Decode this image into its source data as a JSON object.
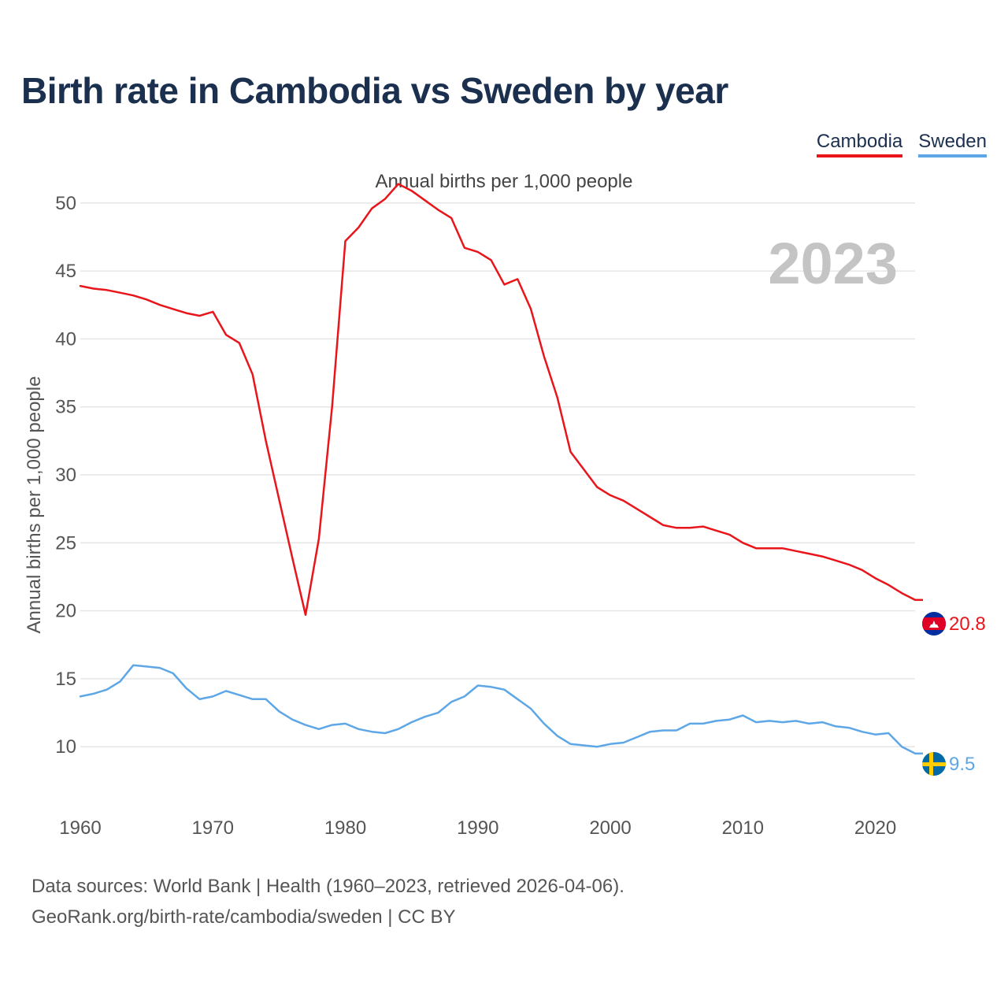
{
  "title": "Birth rate in Cambodia vs Sweden by year",
  "legend": {
    "items": [
      "Cambodia",
      "Sweden"
    ]
  },
  "subtitle": "Annual births per 1,000 people",
  "year_label": "2023",
  "footer": {
    "line1": "Data sources: World Bank | Health (1960–2023, retrieved 2026-04-06).",
    "line2": "GeoRank.org/birth-rate/cambodia/sweden | CC BY"
  },
  "colors": {
    "cambodia": "#e8151b",
    "sweden": "#5ea7e6",
    "title": "#1b2f4e",
    "grid": "#e6e6e6"
  },
  "chart_data": {
    "type": "line",
    "title": "Birth rate in Cambodia vs Sweden by year",
    "ylabel": "Annual births per 1,000 people",
    "xlabel": "",
    "xlim": [
      1960,
      2023
    ],
    "ylim": [
      7,
      53
    ],
    "xticks": [
      1960,
      1970,
      1980,
      1990,
      2000,
      2010,
      2020
    ],
    "yticks": [
      10,
      15,
      20,
      25,
      30,
      35,
      40,
      45,
      50
    ],
    "x": [
      1960,
      1961,
      1962,
      1963,
      1964,
      1965,
      1966,
      1967,
      1968,
      1969,
      1970,
      1971,
      1972,
      1973,
      1974,
      1975,
      1976,
      1977,
      1978,
      1979,
      1980,
      1981,
      1982,
      1983,
      1984,
      1985,
      1986,
      1987,
      1988,
      1989,
      1990,
      1991,
      1992,
      1993,
      1994,
      1995,
      1996,
      1997,
      1998,
      1999,
      2000,
      2001,
      2002,
      2003,
      2004,
      2005,
      2006,
      2007,
      2008,
      2009,
      2010,
      2011,
      2012,
      2013,
      2014,
      2015,
      2016,
      2017,
      2018,
      2019,
      2020,
      2021,
      2022,
      2023
    ],
    "series": [
      {
        "name": "Cambodia",
        "end_label": "20.8",
        "values": [
          43.9,
          43.7,
          43.6,
          43.4,
          43.2,
          42.9,
          42.5,
          42.2,
          41.9,
          41.7,
          42.0,
          40.3,
          39.7,
          37.4,
          32.5,
          28.2,
          23.9,
          19.7,
          25.3,
          35.0,
          47.2,
          48.2,
          49.6,
          50.3,
          51.4,
          50.9,
          50.2,
          49.5,
          48.9,
          46.7,
          46.4,
          45.8,
          44.0,
          44.4,
          42.2,
          38.7,
          35.7,
          31.7,
          30.4,
          29.1,
          28.5,
          28.1,
          27.5,
          26.9,
          26.3,
          26.1,
          26.1,
          26.2,
          25.9,
          25.6,
          25.0,
          24.6,
          24.6,
          24.6,
          24.4,
          24.2,
          24.0,
          23.7,
          23.4,
          23.0,
          22.4,
          21.9,
          21.3,
          20.8
        ]
      },
      {
        "name": "Sweden",
        "end_label": "9.5",
        "values": [
          13.7,
          13.9,
          14.2,
          14.8,
          16.0,
          15.9,
          15.8,
          15.4,
          14.3,
          13.5,
          13.7,
          14.1,
          13.8,
          13.5,
          13.5,
          12.6,
          12.0,
          11.6,
          11.3,
          11.6,
          11.7,
          11.3,
          11.1,
          11.0,
          11.3,
          11.8,
          12.2,
          12.5,
          13.3,
          13.7,
          14.5,
          14.4,
          14.2,
          13.5,
          12.8,
          11.7,
          10.8,
          10.2,
          10.1,
          10.0,
          10.2,
          10.3,
          10.7,
          11.1,
          11.2,
          11.2,
          11.7,
          11.7,
          11.9,
          12.0,
          12.3,
          11.8,
          11.9,
          11.8,
          11.9,
          11.7,
          11.8,
          11.5,
          11.4,
          11.1,
          10.9,
          11.0,
          10.0,
          9.5
        ]
      }
    ]
  }
}
